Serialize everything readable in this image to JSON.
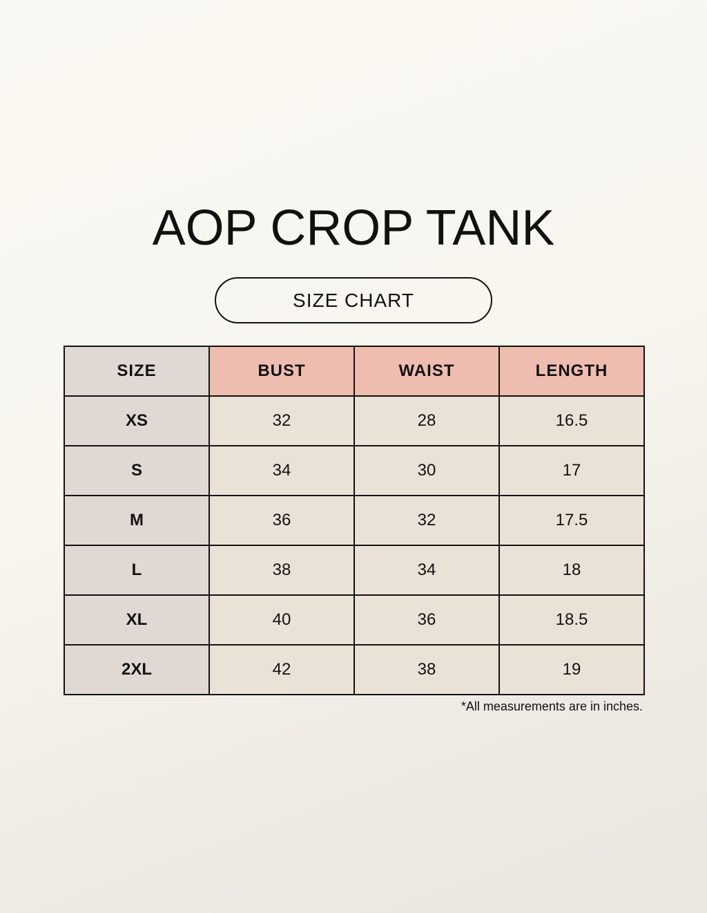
{
  "title": "AOP CROP TANK",
  "subtitle": "SIZE CHART",
  "colors": {
    "header_accent": "#efbdaf",
    "size_column": "#e0d8d3",
    "cell": "#ebe2d7"
  },
  "table": {
    "headers": [
      "SIZE",
      "BUST",
      "WAIST",
      "LENGTH"
    ],
    "rows": [
      [
        "XS",
        "32",
        "28",
        "16.5"
      ],
      [
        "S",
        "34",
        "30",
        "17"
      ],
      [
        "M",
        "36",
        "32",
        "17.5"
      ],
      [
        "L",
        "38",
        "34",
        "18"
      ],
      [
        "XL",
        "40",
        "36",
        "18.5"
      ],
      [
        "2XL",
        "42",
        "38",
        "19"
      ]
    ]
  },
  "note": "*All measurements are in inches."
}
